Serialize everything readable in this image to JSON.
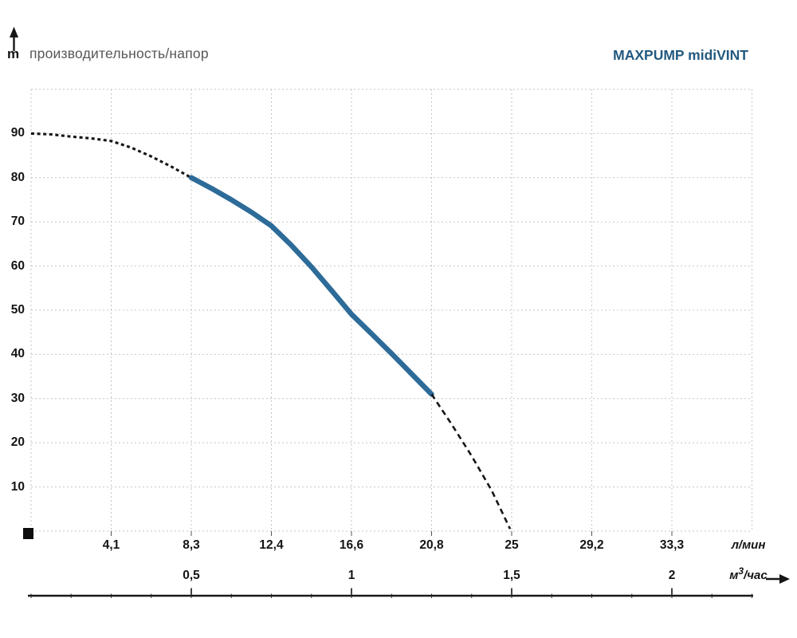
{
  "header": {
    "y_axis_unit": "m",
    "title": "производительность/напор",
    "brand": "MAXPUMP midiVINT"
  },
  "colors": {
    "brand_text": "#23597f",
    "operating_curve": "#2d6b99",
    "grid": "#c6c6c6",
    "axis_ink": "#161616",
    "muted_title": "#575757"
  },
  "chart_data": {
    "type": "line",
    "title": "производительность/напор",
    "series_label": "MAXPUMP midiVINT",
    "ylabel": "m",
    "y_axis": {
      "unit": "m",
      "tick_labels": [
        "90",
        "80",
        "70",
        "60",
        "50",
        "40",
        "30",
        "20",
        "10"
      ],
      "tick_values": [
        90,
        80,
        70,
        60,
        50,
        40,
        30,
        20,
        10
      ],
      "range": [
        0,
        100
      ],
      "grid": true
    },
    "x_axis_lmin": {
      "unit": "л/мин",
      "tick_labels": [
        "4,1",
        "8,3",
        "12,4",
        "16,6",
        "20,8",
        "25",
        "29,2",
        "33,3"
      ],
      "tick_values_m3h": [
        0.25,
        0.5,
        0.75,
        1.0,
        1.25,
        1.5,
        1.75,
        2.0
      ]
    },
    "x_axis_m3h": {
      "unit": "м³/час",
      "unit_pre": "м",
      "unit_sup": "3",
      "unit_post": "/час",
      "tick_labels": [
        "0,5",
        "1",
        "1,5",
        "2"
      ],
      "tick_values": [
        0.5,
        1.0,
        1.5,
        2.0
      ]
    },
    "head_at_zero_flow_m": 90,
    "operating_range": {
      "from_lmin": "8,3",
      "to_lmin": "20,8",
      "from_head_m": 80,
      "to_head_m": 31
    },
    "series": [
      {
        "name": "head-curve-dotted-lead",
        "style": "dotted",
        "points": [
          [
            0,
            90
          ],
          [
            0.0625,
            89.8
          ],
          [
            0.125,
            89.3
          ],
          [
            0.1875,
            88.9
          ],
          [
            0.25,
            88.3
          ],
          [
            0.3125,
            86.8
          ],
          [
            0.375,
            84.8
          ],
          [
            0.4375,
            82.5
          ],
          [
            0.5,
            80
          ]
        ]
      },
      {
        "name": "head-curve-operating-range",
        "style": "solid-thick",
        "color": "#2d6b99",
        "points": [
          [
            0.5,
            80
          ],
          [
            0.5625,
            77.6
          ],
          [
            0.625,
            75.0
          ],
          [
            0.6875,
            72.2
          ],
          [
            0.75,
            69.1
          ],
          [
            0.8125,
            64.7
          ],
          [
            0.875,
            59.8
          ],
          [
            0.9375,
            54.5
          ],
          [
            1.0,
            49.1
          ],
          [
            1.0625,
            44.7
          ],
          [
            1.125,
            40.2
          ],
          [
            1.1875,
            35.6
          ],
          [
            1.25,
            31
          ]
        ]
      },
      {
        "name": "head-curve-dashed-tail",
        "style": "dashed",
        "points": [
          [
            1.25,
            31
          ],
          [
            1.3125,
            24.2
          ],
          [
            1.375,
            17.0
          ],
          [
            1.4375,
            9.2
          ],
          [
            1.495,
            0.5
          ]
        ]
      }
    ],
    "points_units": {
      "x": "м³/час",
      "y": "m"
    },
    "legend_position": "none"
  }
}
